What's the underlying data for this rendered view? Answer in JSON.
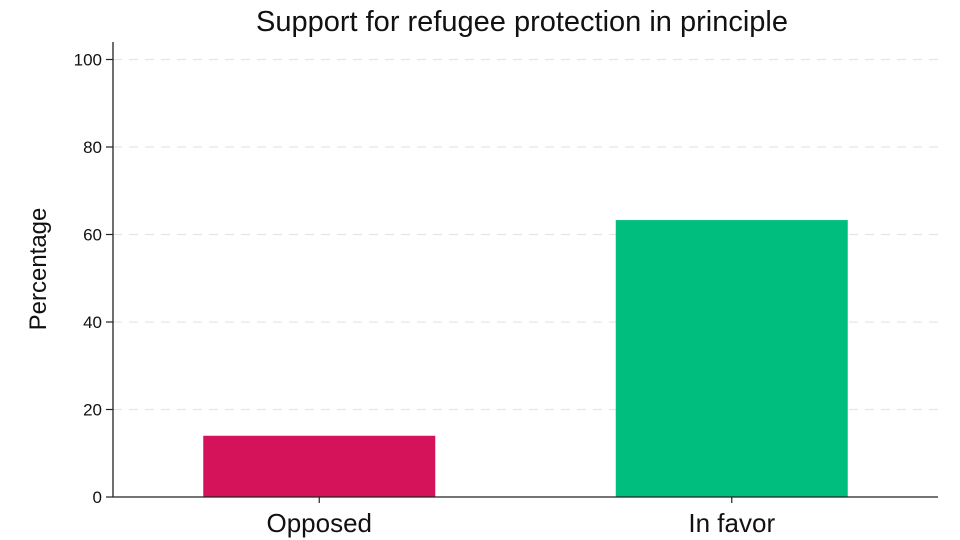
{
  "chart_data": {
    "type": "bar",
    "title": "Support for refugee protection in principle",
    "xlabel": "",
    "ylabel": "Percentage",
    "categories": [
      "Opposed",
      "In favor"
    ],
    "values": [
      14,
      63.3
    ],
    "colors": [
      "#D5135A",
      "#00BF7E"
    ],
    "ylim": [
      0,
      104
    ],
    "yticks": [
      0,
      20,
      40,
      60,
      80,
      100
    ],
    "grid": true,
    "gridStyle": "dashed horizontal"
  }
}
